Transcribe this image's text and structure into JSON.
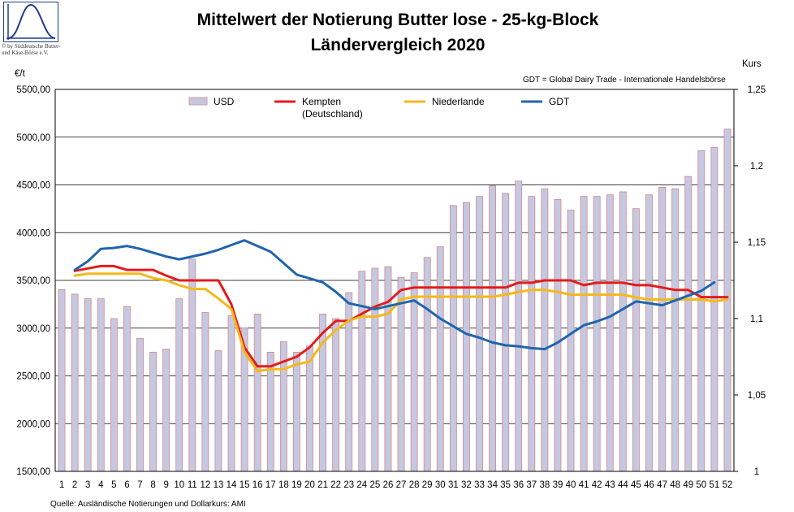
{
  "logo": {
    "name": "sine-wave-logo",
    "text_line1": "© by Süddeutsche Butter-",
    "text_line2": "und Käse-Börse e.V."
  },
  "note": "GDT = Global Dairy Trade - Internationale Handelsbörse",
  "source": "Quelle: Ausländische Notierungen und Dollarkurs: AMI",
  "colors": {
    "usd_bar_fill": "#c5c8e0",
    "usd_bar_stroke": "#d08a8a",
    "kempten": "#e31c1c",
    "niederlande": "#f5b81b",
    "gdt": "#1f65ad",
    "grid": "#000000"
  },
  "chart_data": {
    "type": "bar+line",
    "title": "Mittelwert der Notierung Butter lose - 25-kg-Block",
    "subtitle": "Ländervergleich 2020",
    "ylabel": "€/t",
    "y2label": "Kurs",
    "ylim": [
      1500,
      5500
    ],
    "y_ticks": [
      "1500,00",
      "2000,00",
      "2500,00",
      "3000,00",
      "3500,00",
      "4000,00",
      "4500,00",
      "5000,00",
      "5500,00"
    ],
    "y2lim": [
      1,
      1.25
    ],
    "y2_ticks": [
      "1",
      "1,05",
      "1,1",
      "1,15",
      "1,2",
      "1,25"
    ],
    "grid": true,
    "legend_position": "top",
    "x": [
      1,
      2,
      3,
      4,
      5,
      6,
      7,
      8,
      9,
      10,
      11,
      12,
      13,
      14,
      15,
      16,
      17,
      18,
      19,
      20,
      21,
      22,
      23,
      24,
      25,
      26,
      27,
      28,
      29,
      30,
      31,
      32,
      33,
      34,
      35,
      36,
      37,
      38,
      39,
      40,
      41,
      42,
      43,
      44,
      45,
      46,
      47,
      48,
      49,
      50,
      51,
      52
    ],
    "series": [
      {
        "name": "USD",
        "kind": "bar",
        "axis": "y2",
        "values": [
          1.119,
          1.116,
          1.113,
          1.113,
          1.1,
          1.108,
          1.087,
          1.078,
          1.08,
          1.113,
          1.139,
          1.104,
          1.079,
          1.102,
          1.094,
          1.103,
          1.078,
          1.085,
          1.078,
          1.082,
          1.103,
          1.1,
          1.117,
          1.131,
          1.133,
          1.134,
          1.127,
          1.13,
          1.14,
          1.147,
          1.174,
          1.176,
          1.18,
          1.187,
          1.182,
          1.19,
          1.18,
          1.185,
          1.178,
          1.171,
          1.18,
          1.18,
          1.181,
          1.183,
          1.172,
          1.181,
          1.186,
          1.185,
          1.193,
          1.21,
          1.212,
          1.224
        ]
      },
      {
        "name": "Kempten\n(Deutschland)",
        "kind": "line",
        "axis": "y",
        "values": [
          null,
          3600,
          3625,
          3650,
          3650,
          3610,
          3610,
          3610,
          3550,
          3500,
          3500,
          3500,
          3500,
          3250,
          2800,
          2600,
          2600,
          2650,
          2700,
          2800,
          2950,
          3075,
          3075,
          3150,
          3225,
          3275,
          3400,
          3425,
          3425,
          3425,
          3425,
          3425,
          3425,
          3425,
          3425,
          3475,
          3475,
          3500,
          3500,
          3500,
          3450,
          3475,
          3475,
          3475,
          3450,
          3450,
          3425,
          3400,
          3400,
          3325,
          3325,
          3325
        ]
      },
      {
        "name": "Niederlande",
        "kind": "line",
        "axis": "y",
        "values": [
          null,
          3550,
          3570,
          3570,
          3570,
          3570,
          3570,
          3525,
          3500,
          3450,
          3410,
          3410,
          3310,
          3200,
          2750,
          2550,
          2570,
          2570,
          2620,
          2650,
          2850,
          2980,
          3080,
          3120,
          3120,
          3150,
          3300,
          3330,
          3330,
          3330,
          3330,
          3330,
          3330,
          3330,
          3350,
          3380,
          3400,
          3400,
          3380,
          3350,
          3350,
          3350,
          3350,
          3350,
          3320,
          3300,
          3300,
          3300,
          3300,
          3300,
          3280,
          3300
        ]
      },
      {
        "name": "GDT",
        "kind": "line",
        "axis": "y",
        "values": [
          null,
          3610,
          3700,
          3830,
          3840,
          3860,
          3830,
          3790,
          3750,
          3720,
          3750,
          3780,
          3820,
          3870,
          3920,
          3860,
          3800,
          3680,
          3560,
          3520,
          3480,
          3380,
          3260,
          3230,
          3200,
          3230,
          3260,
          3290,
          3200,
          3100,
          3020,
          2940,
          2900,
          2850,
          2820,
          2810,
          2790,
          2780,
          2850,
          2940,
          3030,
          3070,
          3120,
          3200,
          3280,
          3260,
          3240,
          3290,
          3340,
          3390,
          3480,
          null
        ]
      }
    ]
  }
}
